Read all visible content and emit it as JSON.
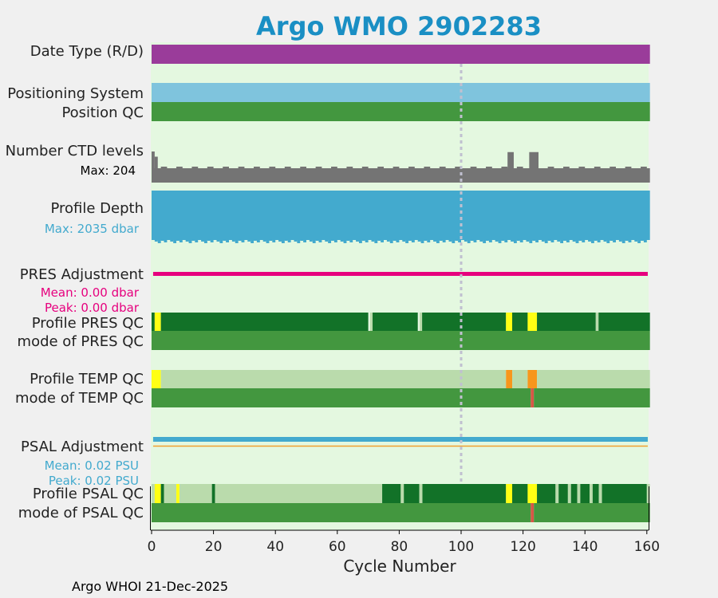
{
  "chart_data": {
    "type": "heatmap",
    "title": "Argo WMO 2902283",
    "xlabel": "Cycle Number",
    "xlim": [
      0,
      161
    ],
    "x_ticks": [
      0,
      20,
      40,
      60,
      80,
      100,
      120,
      140,
      160
    ],
    "reference_line_cycle": 100,
    "footer": "Argo WHOI 21-Dec-2025",
    "colors": {
      "title": "#1a8fc4",
      "panel_bg": "#e4f8e0",
      "delayed_mode": "#9a3c9a",
      "positioning": "#7fc4dd",
      "qc_good": "#43973f",
      "qc_dark": "#127228",
      "qc_light": "#badbac",
      "qc_yellow": "#ffff14",
      "qc_orange": "#f7961c",
      "qc_red": "#d75646",
      "ctd_levels": "#747474",
      "profile_depth": "#43aace",
      "pres_adjustment": "#e6007e",
      "psal_adjustment": "#43aace",
      "psal_ref_line": "#f0a030",
      "ref_line": "#c0c0d0"
    },
    "rows": [
      {
        "key": "date_type",
        "label": "Date Type (R/D)",
        "value": "D",
        "segments": [
          [
            0,
            161,
            "delayed_mode"
          ]
        ]
      },
      {
        "key": "positioning_system",
        "label": "Positioning System",
        "segments": [
          [
            0,
            161,
            "positioning"
          ]
        ]
      },
      {
        "key": "position_qc",
        "label": "Position QC",
        "segments": [
          [
            0,
            161,
            "qc_good"
          ]
        ]
      },
      {
        "key": "ctd_levels",
        "label": "Number CTD levels",
        "max_label": "Max: 204",
        "max": 204,
        "baseline": 103,
        "spikes": [
          [
            0,
            1,
            204
          ],
          [
            1,
            2,
            170
          ],
          [
            115,
            117,
            200
          ],
          [
            122,
            125,
            200
          ],
          [
            123,
            124,
            185
          ]
        ]
      },
      {
        "key": "profile_depth",
        "label": "Profile Depth",
        "max_label": "Max: 2035 dbar",
        "max": 2035
      },
      {
        "key": "pres_adjustment",
        "label": "PRES Adjustment",
        "mean_label": "Mean: 0.00 dbar",
        "peak_label": "Peak: 0.00 dbar",
        "mean": 0.0,
        "peak": 0.0
      },
      {
        "key": "profile_pres_qc",
        "label": "Profile PRES QC",
        "segments": [
          [
            0,
            1,
            "qc_dark"
          ],
          [
            1,
            3,
            "qc_yellow"
          ],
          [
            3,
            70,
            "qc_dark"
          ],
          [
            70.6,
            71.4,
            "qc_light"
          ],
          [
            71.4,
            86,
            "qc_dark"
          ],
          [
            86.6,
            87.4,
            "qc_light"
          ],
          [
            87.4,
            114.5,
            "qc_dark"
          ],
          [
            114.5,
            116.5,
            "qc_yellow"
          ],
          [
            116.5,
            121.5,
            "qc_dark"
          ],
          [
            121.5,
            124.5,
            "qc_yellow"
          ],
          [
            124.5,
            143.5,
            "qc_dark"
          ],
          [
            143.5,
            144.4,
            "qc_light"
          ],
          [
            144.4,
            161,
            "qc_dark"
          ]
        ]
      },
      {
        "key": "mode_pres_qc",
        "label": "mode of PRES QC",
        "segments": [
          [
            0,
            161,
            "qc_good"
          ]
        ]
      },
      {
        "key": "profile_temp_qc",
        "label": "Profile TEMP QC",
        "segments": [
          [
            0,
            3,
            "qc_yellow"
          ],
          [
            3,
            114.5,
            "qc_light"
          ],
          [
            114.5,
            116.5,
            "qc_orange"
          ],
          [
            116.5,
            121.5,
            "qc_light"
          ],
          [
            121.5,
            124.5,
            "qc_orange"
          ],
          [
            124.5,
            161,
            "qc_light"
          ]
        ]
      },
      {
        "key": "mode_temp_qc",
        "label": "mode of TEMP QC",
        "segments": [
          [
            0,
            122.5,
            "qc_good"
          ],
          [
            122.5,
            123.5,
            "qc_red"
          ],
          [
            123.5,
            161,
            "qc_good"
          ]
        ]
      },
      {
        "key": "psal_adjustment",
        "label": "PSAL Adjustment",
        "mean_label": "Mean: 0.02 PSU",
        "peak_label": "Peak: 0.02 PSU",
        "mean": 0.02,
        "peak": 0.02
      },
      {
        "key": "profile_psal_qc",
        "label": "Profile PSAL QC",
        "segments": [
          [
            0,
            1,
            "qc_light"
          ],
          [
            1,
            3,
            "qc_yellow"
          ],
          [
            3,
            4,
            "qc_dark"
          ],
          [
            4,
            8,
            "qc_light"
          ],
          [
            8,
            9,
            "qc_yellow"
          ],
          [
            9,
            19.5,
            "qc_light"
          ],
          [
            19.5,
            20.5,
            "qc_dark"
          ],
          [
            20.5,
            74.5,
            "qc_light"
          ],
          [
            74.5,
            80.5,
            "qc_dark"
          ],
          [
            80.5,
            81.5,
            "qc_light"
          ],
          [
            81.5,
            86.5,
            "qc_dark"
          ],
          [
            86.5,
            87.5,
            "qc_light"
          ],
          [
            87.5,
            114.5,
            "qc_dark"
          ],
          [
            114.5,
            116.5,
            "qc_yellow"
          ],
          [
            116.5,
            121.5,
            "qc_dark"
          ],
          [
            121.5,
            124.5,
            "qc_yellow"
          ],
          [
            124.5,
            130.5,
            "qc_dark"
          ],
          [
            130.5,
            131.5,
            "qc_light"
          ],
          [
            131.5,
            134.5,
            "qc_dark"
          ],
          [
            134.5,
            135.5,
            "qc_light"
          ],
          [
            135.5,
            137.5,
            "qc_dark"
          ],
          [
            137.5,
            138.5,
            "qc_light"
          ],
          [
            138.5,
            141.5,
            "qc_dark"
          ],
          [
            141.5,
            142.5,
            "qc_light"
          ],
          [
            142.5,
            144.5,
            "qc_dark"
          ],
          [
            144.5,
            145.5,
            "qc_light"
          ],
          [
            145.5,
            160,
            "qc_dark"
          ],
          [
            160,
            161,
            "qc_light"
          ]
        ]
      },
      {
        "key": "mode_psal_qc",
        "label": "mode of PSAL QC",
        "segments": [
          [
            0,
            122.5,
            "qc_good"
          ],
          [
            122.5,
            123.5,
            "qc_red"
          ],
          [
            123.5,
            161,
            "qc_good"
          ]
        ]
      }
    ]
  }
}
